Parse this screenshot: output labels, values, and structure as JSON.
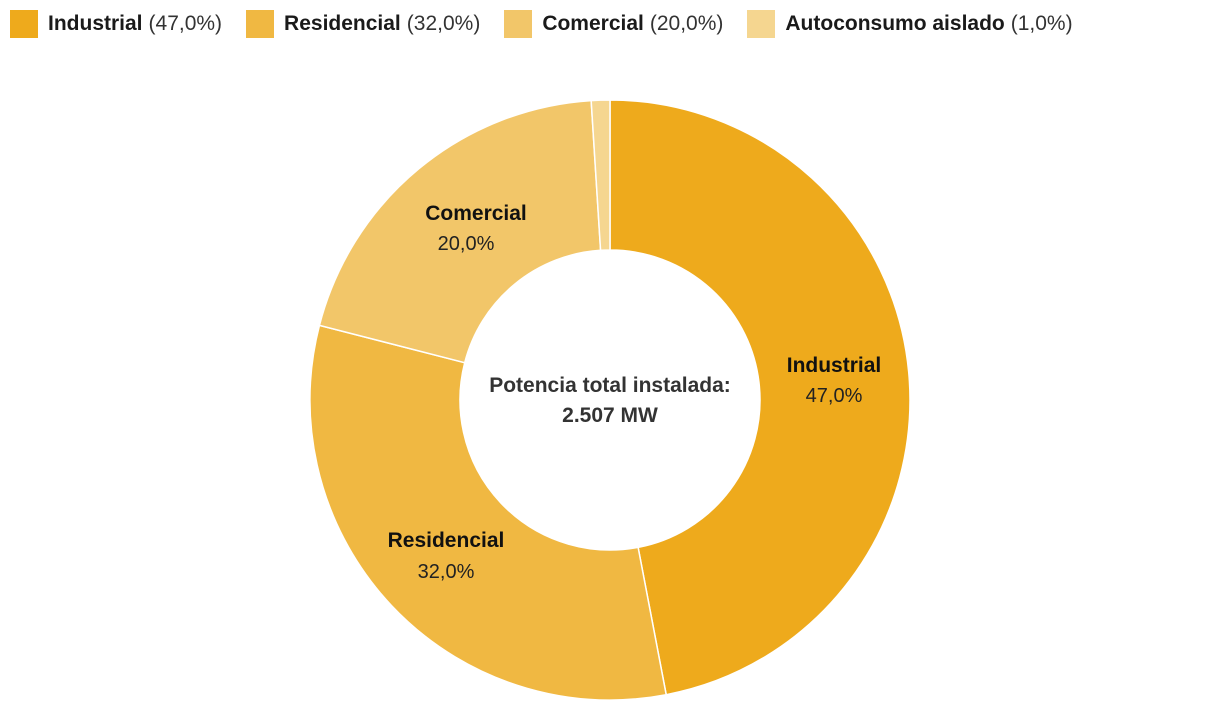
{
  "chart_data": {
    "type": "pie",
    "variant": "donut",
    "title": "",
    "center_label": {
      "line1": "Potencia total instalada:",
      "line2": "2.507 MW"
    },
    "categories": [
      "Industrial",
      "Residencial",
      "Comercial",
      "Autoconsumo aislado"
    ],
    "values": [
      47.0,
      32.0,
      20.0,
      1.0
    ],
    "legend_labels": [
      "(47,0%)",
      "(32,0%)",
      "(20,0%)",
      "(1,0%)"
    ],
    "slice_labels": [
      "47,0%",
      "32,0%",
      "20,0%",
      ""
    ],
    "colors": [
      "#EEAA1C",
      "#F0B842",
      "#F2C669",
      "#F5D690"
    ],
    "legend_position": "top-left"
  }
}
